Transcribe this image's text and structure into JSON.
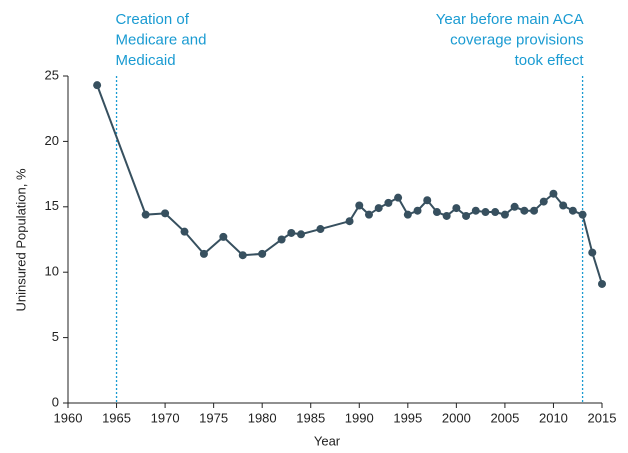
{
  "chart_data": {
    "type": "line",
    "x_label": "Year",
    "y_label": "Uninsured Population, %",
    "x": [
      1963,
      1968,
      1970,
      1972,
      1974,
      1976,
      1978,
      1980,
      1982,
      1983,
      1984,
      1986,
      1989,
      1990,
      1991,
      1992,
      1993,
      1994,
      1995,
      1996,
      1997,
      1998,
      1999,
      2000,
      2001,
      2002,
      2003,
      2004,
      2005,
      2006,
      2007,
      2008,
      2009,
      2010,
      2011,
      2012,
      2013,
      2014,
      2015
    ],
    "series": [
      {
        "name": "Uninsured Population",
        "color": "#37505f",
        "values": [
          24.3,
          14.4,
          14.5,
          13.1,
          11.4,
          12.7,
          11.3,
          11.4,
          12.5,
          13.0,
          12.9,
          13.3,
          13.9,
          15.1,
          14.4,
          14.9,
          15.3,
          15.7,
          14.4,
          14.7,
          15.5,
          14.6,
          14.3,
          14.9,
          14.3,
          14.7,
          14.6,
          14.6,
          14.4,
          15.0,
          14.7,
          14.7,
          15.4,
          16.0,
          15.1,
          14.7,
          14.4,
          11.5,
          9.1
        ]
      }
    ],
    "xlim": [
      1960,
      2015
    ],
    "xticks": [
      1960,
      1965,
      1970,
      1975,
      1980,
      1985,
      1990,
      1995,
      2000,
      2005,
      2010,
      2015
    ],
    "ylim": [
      0,
      25
    ],
    "yticks": [
      0,
      5,
      10,
      15,
      20,
      25
    ],
    "annotations": [
      {
        "x": 1965,
        "align": "left",
        "lines": [
          "Creation of",
          "Medicare and",
          "Medicaid"
        ]
      },
      {
        "x": 2013,
        "align": "right",
        "lines": [
          "Year before main ACA",
          "coverage provisions",
          "took effect"
        ]
      }
    ],
    "annotation_color": "#1a9bd2"
  }
}
